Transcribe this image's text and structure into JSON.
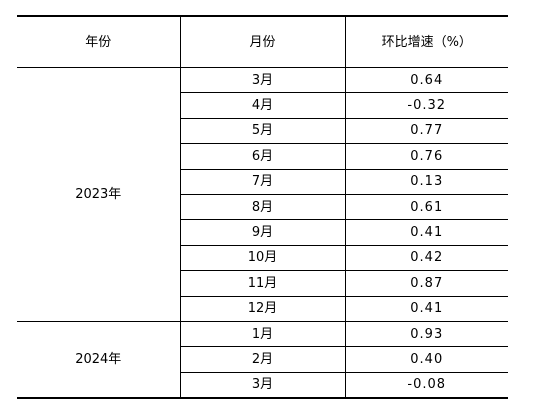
{
  "table": {
    "headers": {
      "year": "年份",
      "month": "月份",
      "change": "环比增速（%）"
    },
    "groups": [
      {
        "year": "2023年",
        "rows": [
          {
            "month": "3月",
            "value": "0.64"
          },
          {
            "month": "4月",
            "value": "-0.32"
          },
          {
            "month": "5月",
            "value": "0.77"
          },
          {
            "month": "6月",
            "value": "0.76"
          },
          {
            "month": "7月",
            "value": "0.13"
          },
          {
            "month": "8月",
            "value": "0.61"
          },
          {
            "month": "9月",
            "value": "0.41"
          },
          {
            "month": "10月",
            "value": "0.42"
          },
          {
            "month": "11月",
            "value": "0.87"
          },
          {
            "month": "12月",
            "value": "0.41"
          }
        ]
      },
      {
        "year": "2024年",
        "rows": [
          {
            "month": "1月",
            "value": "0.93"
          },
          {
            "month": "2月",
            "value": "0.40"
          },
          {
            "month": "3月",
            "value": "-0.08"
          }
        ]
      }
    ]
  }
}
